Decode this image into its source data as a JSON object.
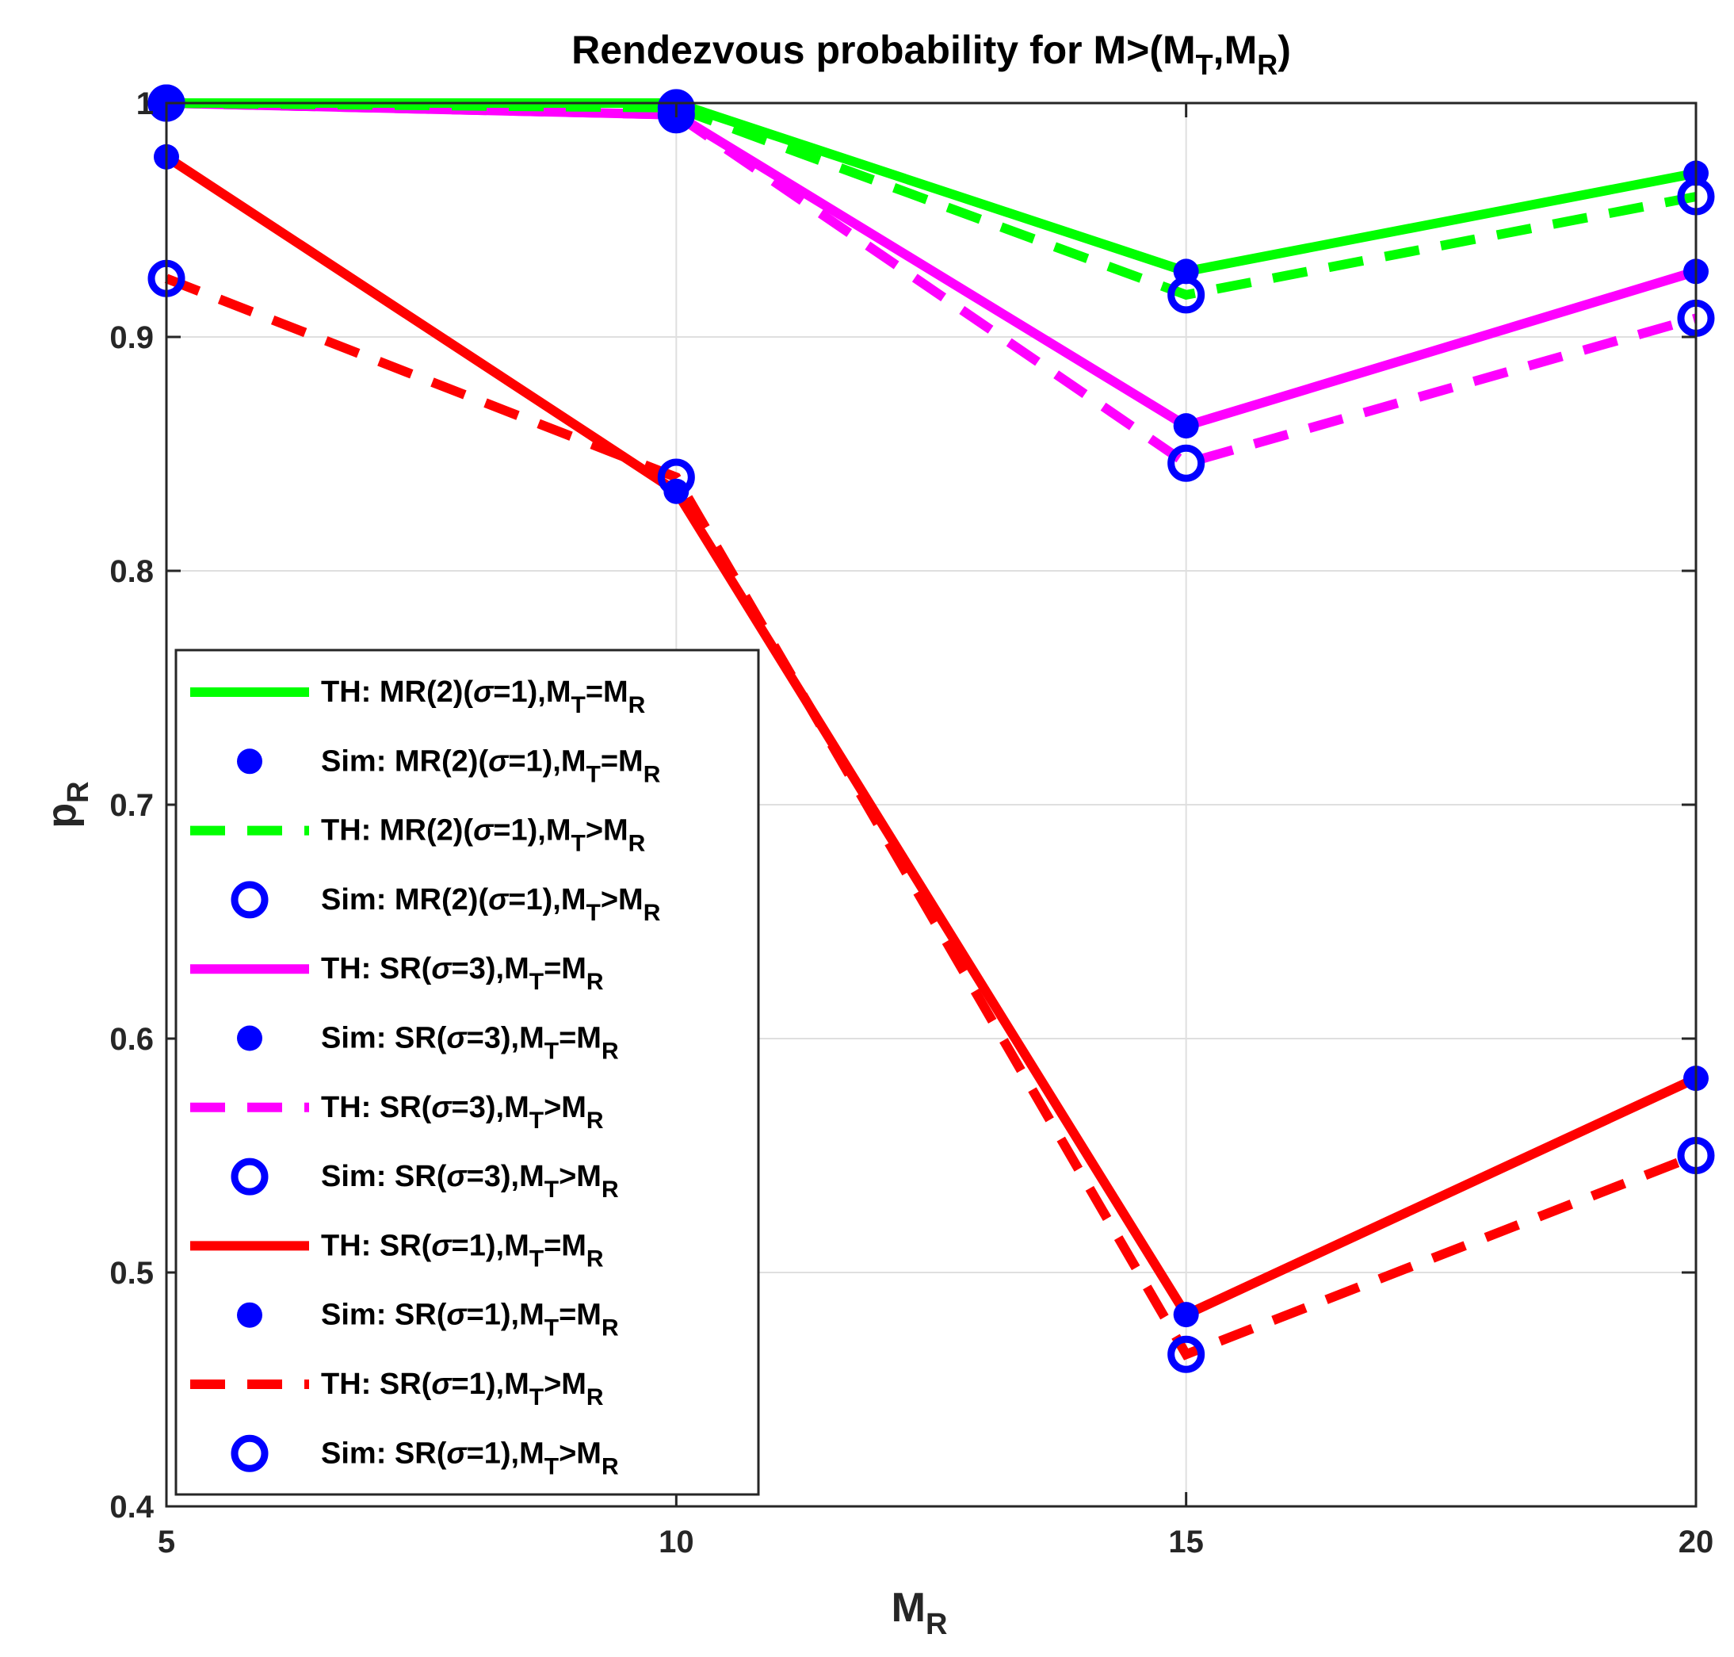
{
  "chart_data": {
    "type": "line",
    "title": {
      "main": "Rendezvous probability for M>(M",
      "sub1": "T",
      "sep": ",M",
      "sub2": "R",
      "close": ")"
    },
    "xlabel": {
      "main": "M",
      "sub": "R"
    },
    "ylabel": {
      "main": "p",
      "sub": "R"
    },
    "x": [
      5,
      10,
      15,
      20
    ],
    "xlim": [
      5,
      20
    ],
    "ylim": [
      0.4,
      1.0
    ],
    "xticks": [
      5,
      10,
      15,
      20
    ],
    "yticks": [
      0.4,
      0.5,
      0.6,
      0.7,
      0.8,
      0.9,
      1
    ],
    "ytick_labels": [
      "0.4",
      "0.5",
      "0.6",
      "0.7",
      "0.8",
      "0.9",
      "1"
    ],
    "xtick_labels": [
      "5",
      "10",
      "15",
      "20"
    ],
    "grid": true,
    "legend_position": "lower-left",
    "series": [
      {
        "name": "TH: MR(2)(σ=1),MT=MR",
        "values": [
          1.0,
          1.0,
          0.928,
          0.97
        ],
        "color": "#00ff00",
        "style": "solid",
        "marker": "none",
        "label": {
          "pre": "TH: MR(2)(",
          "sigma": "σ",
          "mid": "=1),M",
          "sub1": "T",
          "rel": "=M",
          "sub2": "R"
        }
      },
      {
        "name": "Sim: MR(2)(σ=1),MT=MR",
        "values": [
          1.0,
          0.999,
          0.928,
          0.97
        ],
        "color": "#0000ff",
        "style": "none",
        "marker": "filled",
        "label": {
          "pre": "Sim: MR(2)(",
          "sigma": "σ",
          "mid": "=1),M",
          "sub1": "T",
          "rel": "=M",
          "sub2": "R"
        }
      },
      {
        "name": "TH: MR(2)(σ=1),MT>MR",
        "values": [
          1.0,
          0.998,
          0.918,
          0.96
        ],
        "color": "#00ff00",
        "style": "dashed",
        "marker": "none",
        "label": {
          "pre": "TH: MR(2)(",
          "sigma": "σ",
          "mid": "=1),M",
          "sub1": "T",
          "rel": ">M",
          "sub2": "R"
        }
      },
      {
        "name": "Sim: MR(2)(σ=1),MT>MR",
        "values": [
          1.0,
          0.998,
          0.918,
          0.96
        ],
        "color": "#0000ff",
        "style": "none",
        "marker": "open",
        "label": {
          "pre": "Sim: MR(2)(",
          "sigma": "σ",
          "mid": "=1),M",
          "sub1": "T",
          "rel": ">M",
          "sub2": "R"
        }
      },
      {
        "name": "TH: SR(σ=3),MT=MR",
        "values": [
          1.0,
          0.995,
          0.862,
          0.928
        ],
        "color": "#ff00ff",
        "style": "solid",
        "marker": "none",
        "label": {
          "pre": "TH: SR(",
          "sigma": "σ",
          "mid": "=3),M",
          "sub1": "T",
          "rel": "=M",
          "sub2": "R"
        }
      },
      {
        "name": "Sim: SR(σ=3),MT=MR",
        "values": [
          1.0,
          0.995,
          0.862,
          0.928
        ],
        "color": "#0000ff",
        "style": "none",
        "marker": "filled",
        "label": {
          "pre": "Sim: SR(",
          "sigma": "σ",
          "mid": "=3),M",
          "sub1": "T",
          "rel": "=M",
          "sub2": "R"
        }
      },
      {
        "name": "TH: SR(σ=3),MT>MR",
        "values": [
          1.0,
          0.995,
          0.846,
          0.908
        ],
        "color": "#ff00ff",
        "style": "dashed",
        "marker": "none",
        "label": {
          "pre": "TH: SR(",
          "sigma": "σ",
          "mid": "=3),M",
          "sub1": "T",
          "rel": ">M",
          "sub2": "R"
        }
      },
      {
        "name": "Sim: SR(σ=3),MT>MR",
        "values": [
          1.0,
          0.995,
          0.846,
          0.908
        ],
        "color": "#0000ff",
        "style": "none",
        "marker": "open",
        "label": {
          "pre": "Sim: SR(",
          "sigma": "σ",
          "mid": "=3),M",
          "sub1": "T",
          "rel": ">M",
          "sub2": "R"
        }
      },
      {
        "name": "TH: SR(σ=1),MT=MR",
        "values": [
          0.977,
          0.834,
          0.482,
          0.583
        ],
        "color": "#ff0000",
        "style": "solid",
        "marker": "none",
        "label": {
          "pre": "TH: SR(",
          "sigma": "σ",
          "mid": "=1),M",
          "sub1": "T",
          "rel": "=M",
          "sub2": "R"
        }
      },
      {
        "name": "Sim: SR(σ=1),MT=MR",
        "values": [
          0.977,
          0.834,
          0.482,
          0.583
        ],
        "color": "#0000ff",
        "style": "none",
        "marker": "filled",
        "label": {
          "pre": "Sim: SR(",
          "sigma": "σ",
          "mid": "=1),M",
          "sub1": "T",
          "rel": "=M",
          "sub2": "R"
        }
      },
      {
        "name": "TH: SR(σ=1),MT>MR",
        "values": [
          0.925,
          0.84,
          0.465,
          0.55
        ],
        "color": "#ff0000",
        "style": "dashed",
        "marker": "none",
        "label": {
          "pre": "TH: SR(",
          "sigma": "σ",
          "mid": "=1),M",
          "sub1": "T",
          "rel": ">M",
          "sub2": "R"
        }
      },
      {
        "name": "Sim: SR(σ=1),MT>MR",
        "values": [
          0.925,
          0.84,
          0.465,
          0.55
        ],
        "color": "#0000ff",
        "style": "none",
        "marker": "open",
        "label": {
          "pre": "Sim: SR(",
          "sigma": "σ",
          "mid": "=1),M",
          "sub1": "T",
          "rel": ">M",
          "sub2": "R"
        }
      }
    ]
  }
}
